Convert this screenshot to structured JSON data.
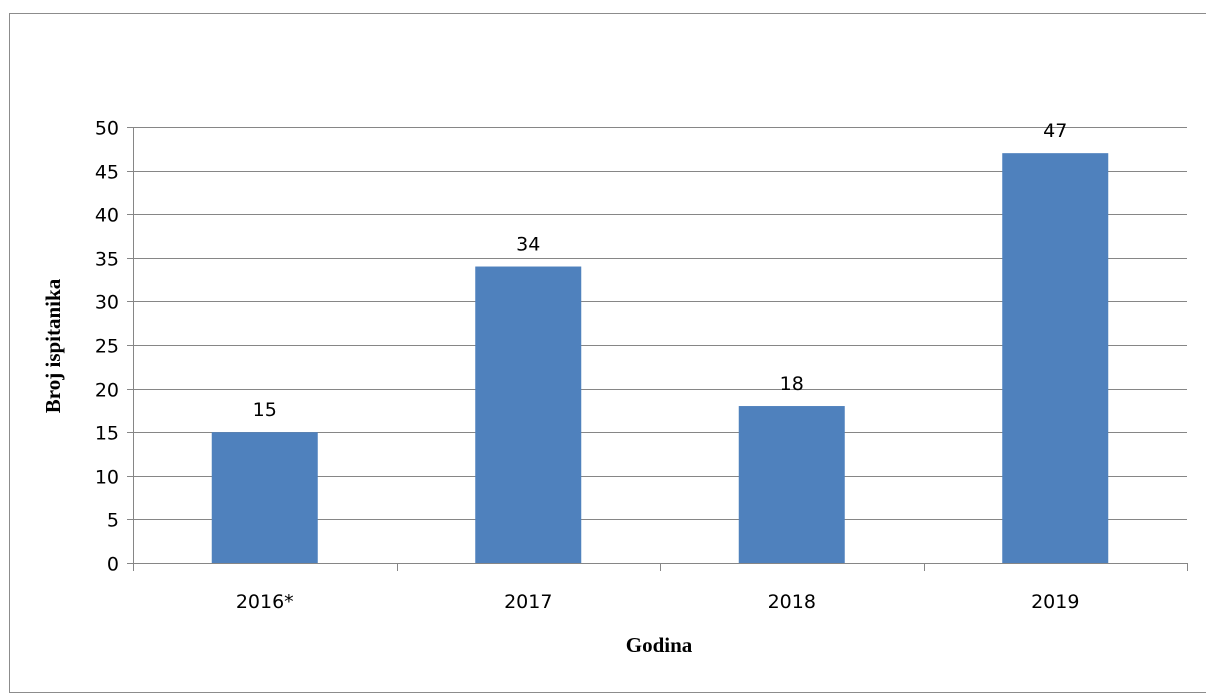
{
  "chart_data": {
    "type": "bar",
    "categories": [
      "2016*",
      "2017",
      "2018",
      "2019"
    ],
    "values": [
      15,
      34,
      18,
      47
    ],
    "data_labels": [
      "15",
      "34",
      "18",
      "47"
    ],
    "title": "",
    "xlabel": "Godina",
    "ylabel": "Broj ispitanika",
    "ylim": [
      0,
      50
    ],
    "yticks": [
      0,
      5,
      10,
      15,
      20,
      25,
      30,
      35,
      40,
      45,
      50
    ],
    "grid": true,
    "legend": "none",
    "colors": {
      "bar": "#4f81bd",
      "grid": "#868686",
      "axis": "#868686",
      "frame": "#8c8c8c"
    }
  }
}
